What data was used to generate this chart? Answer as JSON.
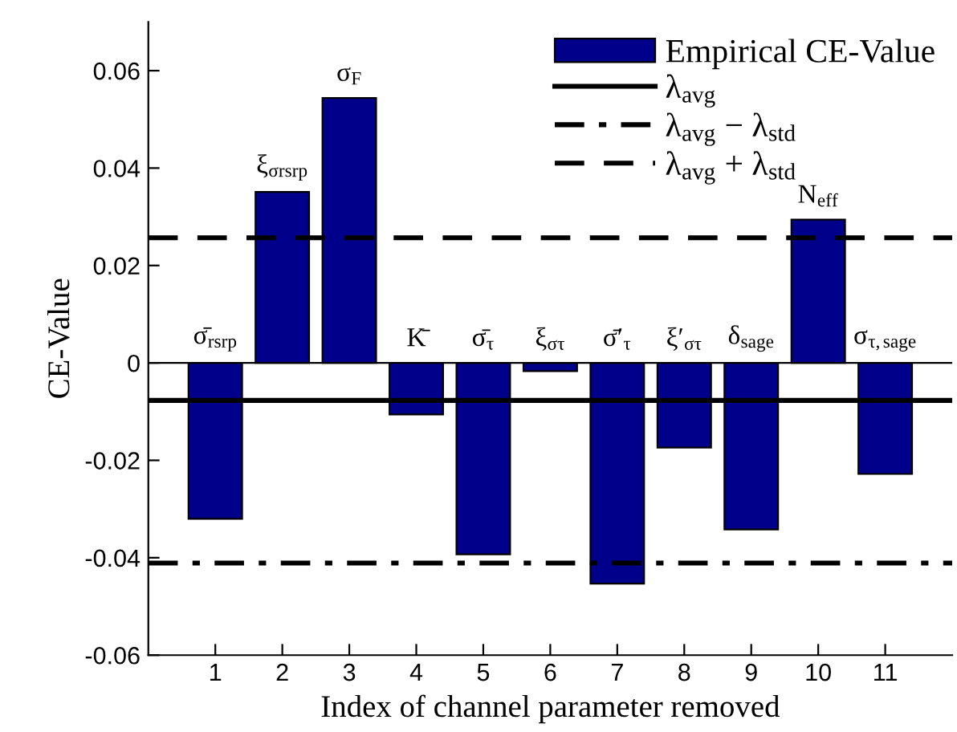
{
  "chart_data": {
    "type": "bar",
    "xlabel": "Index of channel parameter removed",
    "ylabel": "CE-Value",
    "x": [
      1,
      2,
      3,
      4,
      5,
      6,
      7,
      8,
      9,
      10,
      11
    ],
    "series": [
      {
        "name": "Empirical CE-Value",
        "color": "#00008b",
        "values": [
          -0.032,
          0.0351,
          0.0544,
          -0.0106,
          -0.0393,
          -0.0017,
          -0.0453,
          -0.0174,
          -0.0342,
          0.0294,
          -0.0228
        ]
      }
    ],
    "xlim": [
      0,
      12
    ],
    "xticks": [
      1,
      2,
      3,
      4,
      5,
      6,
      7,
      8,
      9,
      10,
      11
    ],
    "ylim": [
      -0.06,
      0.07
    ],
    "yticks": [
      -0.06,
      -0.04,
      -0.02,
      0,
      0.02,
      0.04,
      0.06
    ],
    "ref_lines": [
      {
        "axis": "y",
        "value": 0,
        "line_style": "solid",
        "color": "#000000"
      },
      {
        "axis": "y",
        "value": -0.0077,
        "label": "λ$_{avg}$",
        "line_style": "solid",
        "color": "#000000"
      },
      {
        "axis": "y",
        "value": -0.0411,
        "label": "λ$_{avg}$ − λ$_{std}$",
        "line_style": "dashdot",
        "color": "#000000"
      },
      {
        "axis": "y",
        "value": 0.0257,
        "label": "λ$_{avg}$ + λ$_{std}$",
        "line_style": "dashed",
        "color": "#000000"
      }
    ],
    "annotations": [
      {
        "text": "σ̄$_{rsrp}$",
        "x": 1,
        "y": 0
      },
      {
        "text": "ξ$_{σrsrp}$",
        "x": 2,
        "y": 0.0351
      },
      {
        "text": "σ$_{F}$",
        "x": 3,
        "y": 0.0544
      },
      {
        "text": "K̄",
        "x": 4,
        "y": 0
      },
      {
        "text": "σ̄$_{τ}$",
        "x": 5,
        "y": 0
      },
      {
        "text": "ξ$_{στ}$",
        "x": 6,
        "y": 0
      },
      {
        "text": "σ̄′$_{τ}$",
        "x": 7,
        "y": 0
      },
      {
        "text": "ξ′$_{στ}$",
        "x": 8,
        "y": 0
      },
      {
        "text": "δ$_{sage}$",
        "x": 9,
        "y": 0
      },
      {
        "text": "N$_{eff}$",
        "x": 10,
        "y": 0.0294
      },
      {
        "text": "σ$_{τ,sage}$",
        "x": 11,
        "y": 0
      }
    ],
    "legend": "top right",
    "grid": false
  }
}
